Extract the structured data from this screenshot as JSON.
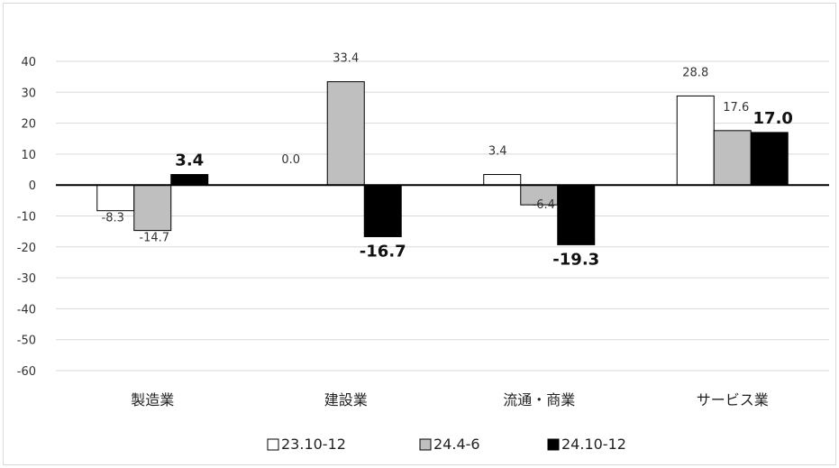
{
  "chart_data": {
    "type": "bar",
    "categories": [
      "製造業",
      "建設業",
      "流通・商業",
      "サービス業"
    ],
    "series": [
      {
        "name": "23.10-12",
        "values": [
          -8.3,
          0.0,
          3.4,
          28.8
        ],
        "color": "#ffffff",
        "labels": [
          "-8.3",
          "0.0",
          "3.4",
          "28.8"
        ],
        "bold": false
      },
      {
        "name": "24.4-6",
        "values": [
          -14.7,
          33.4,
          -6.4,
          17.6
        ],
        "color": "#bfbfbf",
        "labels": [
          "-14.7",
          "33.4",
          "-6.4",
          "17.6"
        ],
        "bold": false
      },
      {
        "name": "24.10-12",
        "values": [
          3.4,
          -16.7,
          -19.3,
          17.0
        ],
        "color": "#000000",
        "labels": [
          "3.4",
          "-16.7",
          "-19.3",
          "17.0"
        ],
        "bold": true
      }
    ],
    "yticks": [
      40,
      30,
      20,
      10,
      0,
      -10,
      -20,
      -30,
      -40,
      -50,
      -60
    ],
    "ylim": [
      -60,
      40
    ],
    "grid": true,
    "legend_position": "bottom"
  }
}
